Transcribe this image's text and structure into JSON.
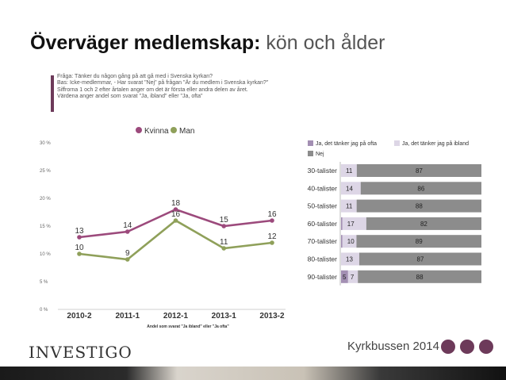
{
  "title": {
    "bold": "Överväger medlemskap:",
    "light": " kön och ålder"
  },
  "notes": [
    "Fråga:  Tänker du någon gång på att gå med i Svenska kyrkan?",
    "Bas:  Icke-medlemmar, - Har svarat \"Nej\" på frågan \"Är du medlem i Svenska kyrkan?\"",
    "Siffrorna 1 och 2 efter årtalen anger om det är första eller andra delen av året.",
    "Värdena anger andel som svarat \"Ja, ibland\" eller \"Ja, ofta\""
  ],
  "brand": {
    "logo": "INVESTIGO",
    "event": "Kyrkbussen 2014"
  },
  "colors": {
    "kvinna": "#9c4a7c",
    "man": "#8fa05a",
    "accent": "#6d3a5a",
    "ofta": "#a38fb3",
    "ibland": "#ddd6e6",
    "nej": "#8c8c8c"
  },
  "chart_data": [
    {
      "type": "line",
      "x": [
        "2010-2",
        "2011-1",
        "2012-1",
        "2013-1",
        "2013-2"
      ],
      "series": [
        {
          "name": "Kvinna",
          "values": [
            13,
            14,
            18,
            15,
            16
          ]
        },
        {
          "name": "Man",
          "values": [
            10,
            9,
            16,
            11,
            12
          ]
        }
      ],
      "yticks": [
        "0 %",
        "5 %",
        "10 %",
        "15 %",
        "20 %",
        "25 %",
        "30 %"
      ],
      "ylim": [
        0,
        30
      ],
      "legend": "top",
      "grid": false,
      "caption": "Andel som svarat \"Ja ibland\" eller \"Ja ofta\""
    },
    {
      "type": "bar",
      "orientation": "horizontal",
      "stacked": true,
      "categories": [
        "30-talister",
        "40-talister",
        "50-talister",
        "60-talister",
        "70-talister",
        "80-talister",
        "90-talister"
      ],
      "series": [
        {
          "name": "Ja, det tänker jag på ofta",
          "values": [
            0,
            0,
            0,
            1,
            1,
            0,
            5
          ]
        },
        {
          "name": "Ja, det tänker jag på ibland",
          "values": [
            11,
            14,
            11,
            17,
            10,
            13,
            7
          ]
        },
        {
          "name": "Nej",
          "values": [
            87,
            86,
            88,
            82,
            89,
            87,
            88
          ]
        }
      ],
      "labels": [
        [
          "11",
          "87"
        ],
        [
          "14",
          "86"
        ],
        [
          "11",
          "88"
        ],
        [
          "17",
          "82"
        ],
        [
          "10",
          "89"
        ],
        [
          "13",
          "87"
        ],
        [
          "5",
          "7",
          "88"
        ]
      ],
      "legend": "top"
    }
  ]
}
